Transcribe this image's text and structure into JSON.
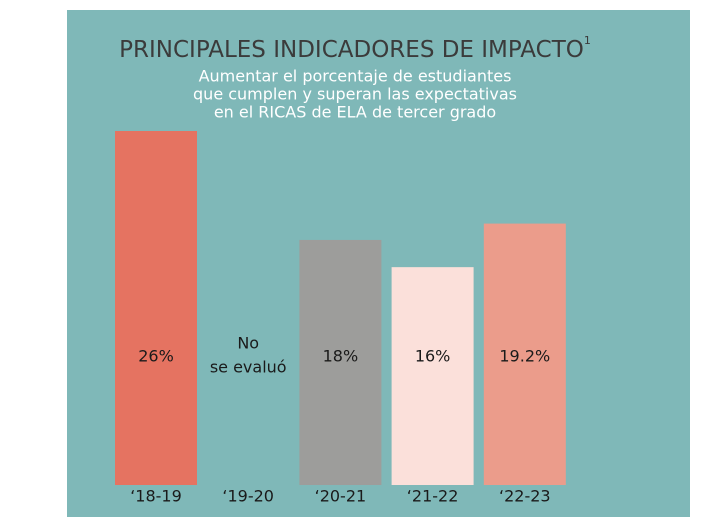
{
  "chart_data": {
    "type": "bar",
    "title": "PRINCIPALES INDICADORES DE IMPACTO",
    "title_note": "1",
    "subtitle": [
      "Aumentar el porcentaje de estudiantes",
      "que cumplen y superan las expectativas",
      "en el RICAS de ELA de tercer grado"
    ],
    "categories": [
      "‘18-19",
      "‘19-20",
      "‘20-21",
      "‘21-22",
      "‘22-23"
    ],
    "values": [
      26,
      null,
      18,
      16,
      19.2
    ],
    "value_labels": [
      "26%",
      null,
      "18%",
      "16%",
      "19.2%"
    ],
    "colors": [
      "#e57361",
      null,
      "#9d9d9b",
      "#fbe0da",
      "#eb9c8b"
    ],
    "annotation": [
      "No",
      "se evaluó"
    ],
    "background": "#7fb8b8"
  }
}
